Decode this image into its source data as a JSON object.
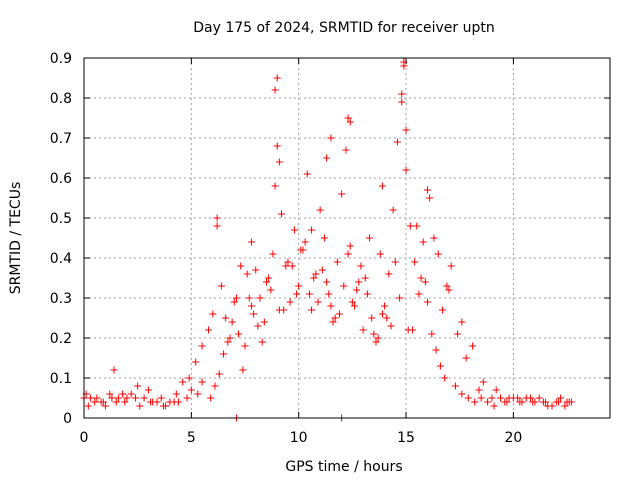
{
  "chart_data": {
    "type": "scatter",
    "title": "Day 175 of 2024, SRMTID for receiver uptn",
    "xlabel": "GPS time / hours",
    "ylabel": "SRMTID / TECUs",
    "xlim": [
      0,
      24.5
    ],
    "ylim": [
      0,
      0.9
    ],
    "xticks": [
      0,
      5,
      10,
      15,
      20
    ],
    "xtick_labels": [
      "0",
      "5",
      "10",
      "15",
      "20"
    ],
    "yticks": [
      0,
      0.1,
      0.2,
      0.3,
      0.4,
      0.5,
      0.6,
      0.7,
      0.8,
      0.9
    ],
    "ytick_labels": [
      "0",
      "0.1",
      "0.2",
      "0.3",
      "0.4",
      "0.5",
      "0.6",
      "0.7",
      "0.8",
      "0.9"
    ],
    "grid": true,
    "marker": "+",
    "series": [
      {
        "name": "SRMTID",
        "color": "#ff0000",
        "x": [
          0.0,
          0.3,
          0.6,
          0.9,
          1.2,
          1.4,
          1.6,
          1.9,
          2.2,
          2.5,
          2.8,
          3.1,
          3.4,
          3.7,
          4.0,
          4.3,
          4.6,
          4.9,
          5.2,
          5.5,
          5.8,
          6.0,
          6.2,
          6.4,
          6.6,
          6.8,
          7.0,
          7.2,
          7.4,
          7.6,
          7.8,
          8.0,
          8.2,
          8.4,
          8.6,
          8.8,
          8.9,
          9.0,
          9.2,
          9.4,
          9.6,
          9.8,
          10.0,
          10.2,
          10.4,
          10.6,
          10.8,
          11.0,
          11.2,
          11.4,
          11.6,
          11.8,
          12.0,
          12.2,
          12.4,
          12.6,
          12.8,
          13.0,
          13.2,
          13.4,
          13.6,
          13.8,
          14.0,
          14.2,
          14.4,
          14.6,
          14.8,
          14.9,
          15.0,
          15.2,
          15.4,
          15.6,
          15.8,
          16.0,
          16.2,
          16.4,
          16.6,
          16.8,
          17.0,
          17.3,
          17.6,
          17.9,
          18.2,
          18.5,
          18.8,
          19.1,
          19.4,
          19.7,
          20.0,
          20.3,
          20.6,
          20.9,
          21.2,
          21.5,
          21.8,
          22.1,
          22.4,
          22.7,
          0.1,
          0.5,
          1.0,
          1.5,
          2.0,
          2.6,
          3.2,
          3.8,
          4.4,
          5.0,
          5.5,
          6.1,
          6.5,
          6.9,
          7.3,
          7.7,
          8.1,
          8.5,
          9.1,
          9.5,
          9.9,
          10.3,
          10.7,
          11.1,
          11.5,
          11.9,
          12.3,
          12.7,
          13.1,
          13.5,
          13.9,
          14.3,
          14.7,
          15.1,
          15.5,
          15.9,
          16.3,
          16.7,
          17.1,
          17.6,
          18.1,
          18.6,
          19.2,
          19.8,
          20.4,
          21.0,
          21.6,
          22.2,
          22.6,
          0.2,
          0.8,
          1.3,
          1.8,
          2.4,
          3.0,
          3.6,
          4.2,
          4.8,
          5.3,
          5.9,
          6.3,
          6.7,
          7.1,
          7.5,
          7.9,
          8.3,
          8.7,
          9.3,
          9.7,
          10.1,
          10.5,
          10.9,
          11.3,
          11.7,
          12.1,
          12.5,
          12.9,
          13.3,
          13.7,
          14.1,
          14.5,
          15.3,
          15.7,
          16.1,
          16.5,
          16.9,
          17.4,
          17.8,
          18.4,
          19.0,
          19.6,
          20.2,
          20.8,
          21.4,
          22.0,
          22.5,
          9.0,
          9.1,
          10.6,
          11.5,
          12.3,
          14.8,
          14.9,
          15.0,
          6.2,
          7.8,
          12.4,
          13.9,
          16.0,
          8.9,
          11.3,
          7.1,
          12.0
        ],
        "y": [
          0.05,
          0.05,
          0.05,
          0.04,
          0.06,
          0.12,
          0.05,
          0.04,
          0.06,
          0.08,
          0.05,
          0.04,
          0.04,
          0.03,
          0.04,
          0.06,
          0.09,
          0.1,
          0.14,
          0.18,
          0.22,
          0.26,
          0.48,
          0.33,
          0.25,
          0.2,
          0.29,
          0.21,
          0.12,
          0.36,
          0.28,
          0.37,
          0.3,
          0.24,
          0.35,
          0.41,
          0.82,
          0.68,
          0.51,
          0.38,
          0.29,
          0.47,
          0.33,
          0.42,
          0.61,
          0.27,
          0.36,
          0.52,
          0.45,
          0.31,
          0.24,
          0.39,
          0.56,
          0.67,
          0.43,
          0.28,
          0.34,
          0.22,
          0.31,
          0.25,
          0.19,
          0.41,
          0.28,
          0.36,
          0.52,
          0.69,
          0.81,
          0.88,
          0.62,
          0.48,
          0.39,
          0.31,
          0.44,
          0.29,
          0.21,
          0.17,
          0.13,
          0.1,
          0.32,
          0.08,
          0.06,
          0.05,
          0.04,
          0.05,
          0.04,
          0.03,
          0.05,
          0.04,
          0.05,
          0.04,
          0.05,
          0.04,
          0.05,
          0.04,
          0.03,
          0.04,
          0.03,
          0.04,
          0.06,
          0.04,
          0.03,
          0.04,
          0.05,
          0.03,
          0.04,
          0.03,
          0.04,
          0.07,
          0.09,
          0.08,
          0.16,
          0.24,
          0.38,
          0.3,
          0.23,
          0.34,
          0.27,
          0.39,
          0.31,
          0.44,
          0.35,
          0.37,
          0.28,
          0.26,
          0.41,
          0.32,
          0.35,
          0.21,
          0.26,
          0.23,
          0.3,
          0.22,
          0.48,
          0.34,
          0.45,
          0.27,
          0.38,
          0.24,
          0.18,
          0.09,
          0.07,
          0.05,
          0.04,
          0.04,
          0.03,
          0.05,
          0.04,
          0.03,
          0.04,
          0.05,
          0.06,
          0.05,
          0.07,
          0.05,
          0.04,
          0.05,
          0.06,
          0.05,
          0.11,
          0.19,
          0.3,
          0.18,
          0.26,
          0.19,
          0.32,
          0.27,
          0.38,
          0.42,
          0.31,
          0.29,
          0.34,
          0.25,
          0.33,
          0.29,
          0.38,
          0.45,
          0.2,
          0.25,
          0.39,
          0.22,
          0.35,
          0.55,
          0.41,
          0.33,
          0.21,
          0.15,
          0.07,
          0.05,
          0.04,
          0.05,
          0.05,
          0.04,
          0.04,
          0.04,
          0.85,
          0.64,
          0.47,
          0.7,
          0.75,
          0.79,
          0.89,
          0.72,
          0.5,
          0.44,
          0.74,
          0.58,
          0.57,
          0.58,
          0.65,
          0.0,
          0.0
        ]
      }
    ]
  }
}
